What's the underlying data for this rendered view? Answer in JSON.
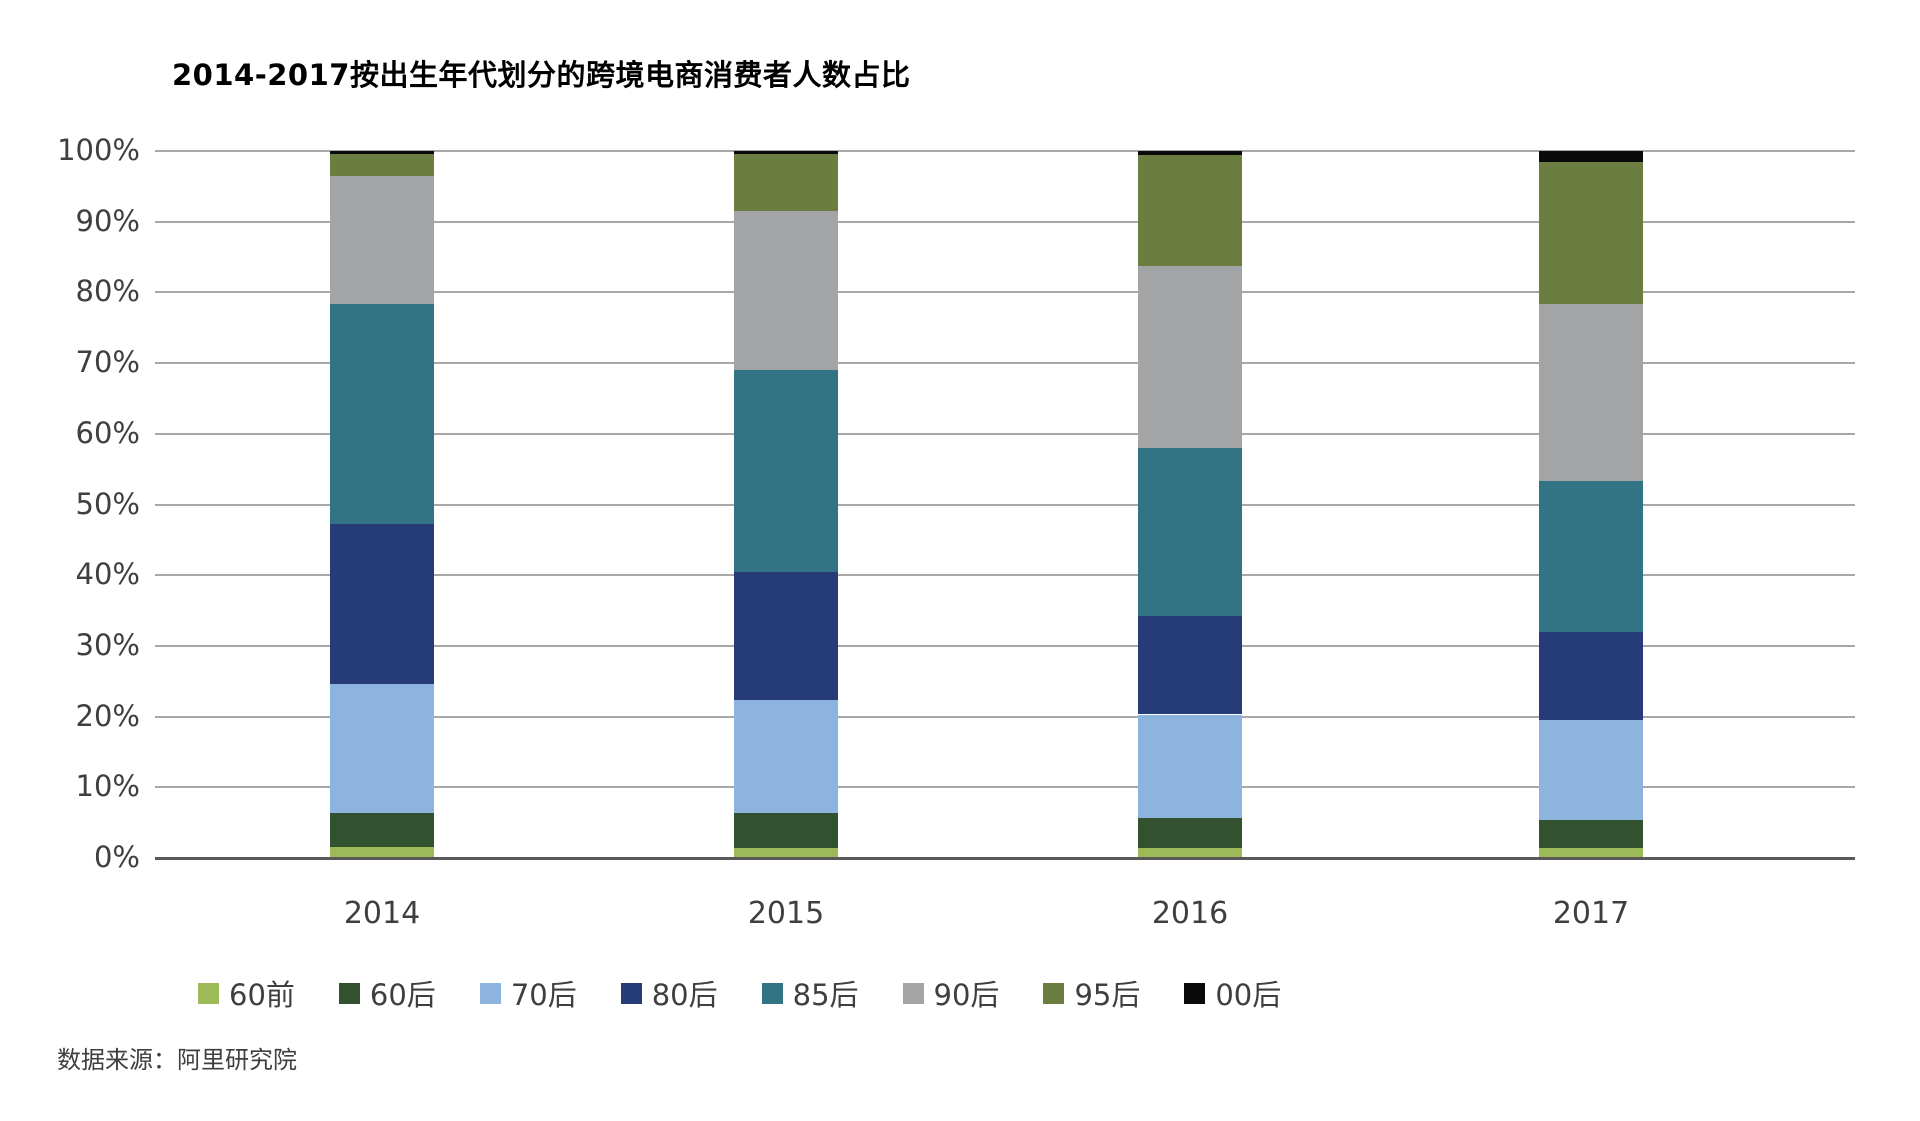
{
  "chart_data": {
    "type": "bar",
    "stacked": true,
    "percent_stacked": true,
    "title": "2014-2017按出生年代划分的跨境电商消费者人数占比",
    "categories": [
      "2014",
      "2015",
      "2016",
      "2017"
    ],
    "series": [
      {
        "name": "60前",
        "color": "#9CBB58",
        "values": [
          1.5,
          1.4,
          1.4,
          1.4
        ]
      },
      {
        "name": "60后",
        "color": "#31512F",
        "values": [
          4.9,
          5.0,
          4.2,
          4.0
        ]
      },
      {
        "name": "70后",
        "color": "#8DB4DF",
        "values": [
          18.2,
          16.0,
          14.7,
          14.1
        ]
      },
      {
        "name": "80后",
        "color": "#253C78",
        "values": [
          22.6,
          18.1,
          14.0,
          12.5
        ]
      },
      {
        "name": "85后",
        "color": "#327484",
        "values": [
          31.1,
          28.5,
          23.7,
          21.3
        ]
      },
      {
        "name": "90后",
        "color": "#A3A4A6",
        "values": [
          18.1,
          22.5,
          25.8,
          25.0
        ]
      },
      {
        "name": "95后",
        "color": "#6B7D3F",
        "values": [
          3.2,
          8.1,
          15.7,
          20.2
        ]
      },
      {
        "name": "00后",
        "color": "#0A0A0A",
        "values": [
          0.4,
          0.4,
          0.5,
          1.5
        ]
      }
    ],
    "xlabel": "",
    "ylabel": "",
    "ylim": [
      0,
      100
    ],
    "y_tick_labels": [
      "0%",
      "10%",
      "20%",
      "30%",
      "40%",
      "50%",
      "60%",
      "70%",
      "80%",
      "90%",
      "100%"
    ],
    "grid": "horizontal",
    "legend_position": "bottom",
    "units": "percent of consumers"
  },
  "source_note": "数据来源：阿里研究院"
}
